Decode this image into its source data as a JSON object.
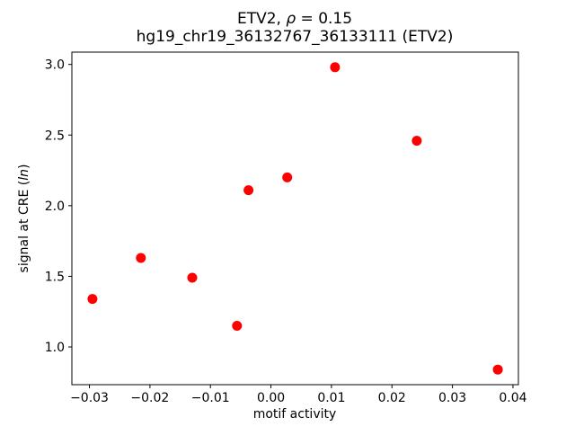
{
  "title": {
    "line1_prefix": "ETV2, ",
    "line1_rho": "ρ",
    "line1_suffix": " = 0.15",
    "line2": "hg19_chr19_36132767_36133111 (ETV2)"
  },
  "axes": {
    "xlabel": "motif activity",
    "ylabel_prefix": "signal at CRE (",
    "ylabel_italic": "ln",
    "ylabel_suffix": ")"
  },
  "chart_data": {
    "type": "scatter",
    "title": "ETV2, ρ = 0.15",
    "subtitle": "hg19_chr19_36132767_36133111 (ETV2)",
    "xlabel": "motif activity",
    "ylabel": "signal at CRE (ln)",
    "marker_color": "#ff0000",
    "marker_radius_px": 5.5,
    "grid": false,
    "legend": null,
    "xlim": [
      -0.0329,
      0.0409
    ],
    "ylim": [
      0.733,
      3.087
    ],
    "x_ticks": [
      -0.03,
      -0.02,
      -0.01,
      0.0,
      0.01,
      0.02,
      0.03,
      0.04
    ],
    "x_tick_labels": [
      "−0.03",
      "−0.02",
      "−0.01",
      "0.00",
      "0.01",
      "0.02",
      "0.03",
      "0.04"
    ],
    "y_ticks": [
      1.0,
      1.5,
      2.0,
      2.5,
      3.0
    ],
    "y_tick_labels": [
      "1.0",
      "1.5",
      "2.0",
      "2.5",
      "3.0"
    ],
    "points": [
      {
        "x": -0.0295,
        "y": 1.34
      },
      {
        "x": -0.0215,
        "y": 1.63
      },
      {
        "x": -0.013,
        "y": 1.49
      },
      {
        "x": -0.0056,
        "y": 1.15
      },
      {
        "x": -0.0037,
        "y": 2.11
      },
      {
        "x": 0.0027,
        "y": 2.2
      },
      {
        "x": 0.0106,
        "y": 2.98
      },
      {
        "x": 0.0241,
        "y": 2.46
      },
      {
        "x": 0.0375,
        "y": 0.84
      }
    ]
  }
}
